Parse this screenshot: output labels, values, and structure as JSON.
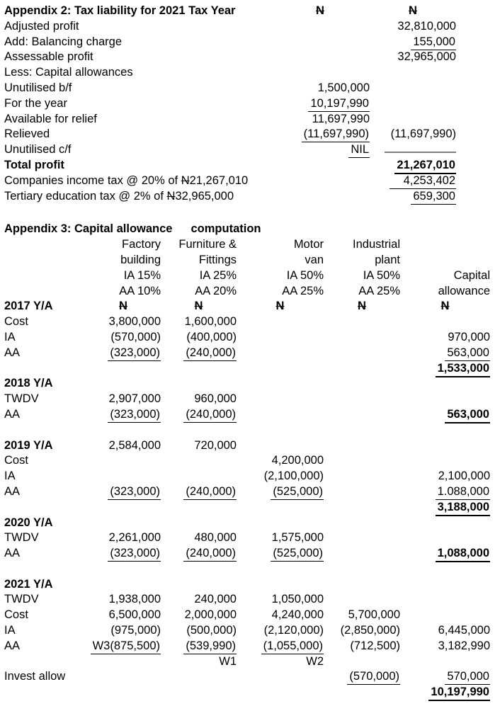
{
  "currency_symbol": "₦",
  "appendix2": {
    "title": "Appendix 2: Tax liability for 2021 Tax Year",
    "column_currency_headers": [
      "₦",
      "₦"
    ],
    "rows": [
      {
        "label": "Adjusted profit",
        "c2": "32,810,000"
      },
      {
        "label": "Add: Balancing charge",
        "c2": "155,000",
        "c2_underline": true
      },
      {
        "label": "Assessable profit",
        "c2": "32,965,000"
      },
      {
        "label": "Less: Capital allowances"
      },
      {
        "label": "Unutilised b/f",
        "c1": "1,500,000"
      },
      {
        "label": "For the year",
        "c1": "10,197,990",
        "c1_underline": true
      },
      {
        "label": "Available for relief",
        "c1": "11,697,990"
      },
      {
        "label": "Relieved",
        "c1": "(11,697,990)",
        "c1_underline": true,
        "c2": "(11,697,990)"
      },
      {
        "label": "Unutilised c/f",
        "c1": "NIL",
        "c1_underline": true,
        "c2_rule": true
      },
      {
        "label": "Total profit",
        "label_bold": true,
        "c2": "21,267,010",
        "c2_bold": true,
        "c2_underline": true
      },
      {
        "label": "Companies income tax @ 20% of ₦21,267,010",
        "c2": "4,253,402",
        "c2_underline": true,
        "c2_underline_extend": true
      },
      {
        "label": "Tertiary education tax @ 2% of ₦32,965,000",
        "c2": "659,300",
        "c2_underline": true
      }
    ]
  },
  "appendix3": {
    "title_left": "Appendix 3: Capital allowance",
    "title_right": "computation",
    "column_headers": [
      [
        "Factory",
        "Furniture &",
        "Motor",
        "Industrial",
        ""
      ],
      [
        "building",
        "Fittings",
        "van",
        "plant",
        ""
      ],
      [
        "IA 15%",
        "IA 25%",
        "IA 50%",
        "IA 50%",
        "Capital"
      ],
      [
        "AA 10%",
        "AA 20%",
        "AA 25%",
        "AA 25%",
        "allowance"
      ]
    ],
    "rows": [
      {
        "label": "2017 Y/A",
        "label_bold": true,
        "currency_row": true,
        "cells": [
          "₦",
          "₦",
          "₦",
          "₦",
          "₦"
        ]
      },
      {
        "label": "Cost",
        "cells": [
          "3,800,000",
          "1,600,000",
          "",
          "",
          ""
        ]
      },
      {
        "label": "IA",
        "cells": [
          "(570,000)",
          "(400,000)",
          "",
          "",
          "970,000"
        ]
      },
      {
        "label": "AA",
        "cells": [
          "(323,000)",
          "(240,000)",
          "",
          "",
          "563,000"
        ],
        "underline": [
          true,
          true,
          false,
          false,
          true
        ]
      },
      {
        "label": "",
        "cells": [
          "",
          "",
          "",
          "",
          "1,533,000"
        ],
        "bold_cells": [
          false,
          false,
          false,
          false,
          true
        ],
        "underline": [
          false,
          false,
          false,
          false,
          true
        ]
      },
      {
        "label": "2018 Y/A",
        "label_bold": true,
        "cells": [
          "",
          "",
          "",
          "",
          ""
        ]
      },
      {
        "label": "TWDV",
        "cells": [
          "2,907,000",
          "960,000",
          "",
          "",
          ""
        ]
      },
      {
        "label": "AA",
        "cells": [
          "(323,000)",
          "(240,000)",
          "",
          "",
          "563,000"
        ],
        "underline": [
          true,
          true,
          false,
          false,
          true
        ],
        "bold_cells": [
          false,
          false,
          false,
          false,
          true
        ]
      },
      {
        "blank": true
      },
      {
        "label": "2019 Y/A",
        "label_bold": true,
        "cells": [
          "2,584,000",
          "720,000",
          "",
          "",
          ""
        ]
      },
      {
        "label": "Cost",
        "cells": [
          "",
          "",
          "4,200,000",
          "",
          ""
        ]
      },
      {
        "label": "IA",
        "cells": [
          "",
          "",
          "(2,100,000)",
          "",
          "2,100,000"
        ]
      },
      {
        "label": "AA",
        "cells": [
          "(323,000)",
          "(240,000)",
          "(525,000)",
          "",
          "1.088,000"
        ],
        "underline": [
          true,
          true,
          true,
          false,
          true
        ]
      },
      {
        "label": "",
        "cells": [
          "",
          "",
          "",
          "",
          "3,188,000"
        ],
        "bold_cells": [
          false,
          false,
          false,
          false,
          true
        ],
        "underline": [
          false,
          false,
          false,
          false,
          true
        ]
      },
      {
        "label": "2020 Y/A",
        "label_bold": true,
        "cells": [
          "",
          "",
          "",
          "",
          ""
        ]
      },
      {
        "label": "TWDV",
        "cells": [
          "2,261,000",
          "480,000",
          "1,575,000",
          "",
          ""
        ]
      },
      {
        "label": "AA",
        "cells": [
          "(323,000)",
          "(240,000)",
          "(525,000)",
          "",
          "1,088,000"
        ],
        "underline": [
          true,
          true,
          true,
          false,
          true
        ],
        "bold_cells": [
          false,
          false,
          false,
          false,
          true
        ]
      },
      {
        "blank": true
      },
      {
        "label": "2021 Y/A",
        "label_bold": true,
        "cells": [
          "",
          "",
          "",
          "",
          ""
        ]
      },
      {
        "label": "TWDV",
        "cells": [
          "1,938,000",
          "240,000",
          "1,050,000",
          "",
          ""
        ]
      },
      {
        "label": "Cost",
        "cells": [
          "6,500,000",
          "2,000,000",
          "4,240,000",
          "5,700,000",
          ""
        ]
      },
      {
        "label": "IA",
        "cells": [
          "(975,000)",
          "(500,000)",
          "(2,120,000)",
          "(2,850,000)",
          "6,445,000"
        ]
      },
      {
        "label": "AA",
        "cells": [
          "W3(875,500)",
          "(539,990)",
          "(1,055,000)",
          "(712,500)",
          "3,182,990"
        ],
        "underline": [
          true,
          true,
          true,
          false,
          false
        ]
      },
      {
        "label": "",
        "cells": [
          "",
          "W1",
          "W2",
          "",
          ""
        ]
      },
      {
        "label": "Invest allow",
        "cells": [
          "",
          "",
          "",
          "(570,000)",
          "570,000"
        ],
        "underline": [
          false,
          false,
          false,
          true,
          true
        ]
      },
      {
        "label": "",
        "cells": [
          "",
          "",
          "",
          "",
          "10,197,990"
        ],
        "bold_cells": [
          false,
          false,
          false,
          false,
          true
        ],
        "underline": [
          false,
          false,
          false,
          false,
          true
        ]
      }
    ]
  }
}
